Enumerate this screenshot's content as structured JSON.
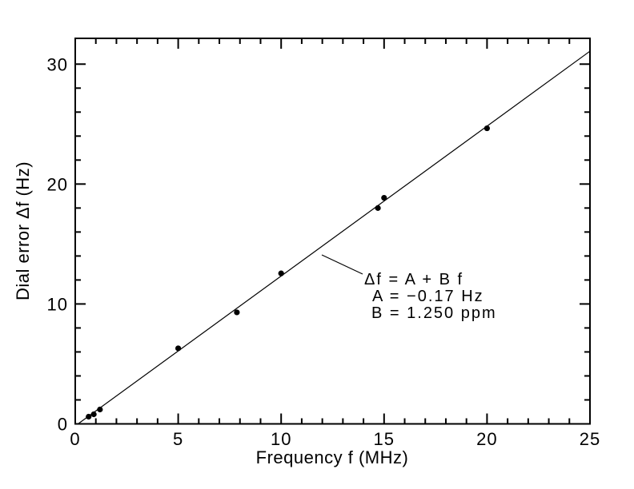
{
  "chart_data": {
    "type": "scatter",
    "title": "",
    "xlabel": "Frequency f (MHz)",
    "ylabel": "Dial error Δf (Hz)",
    "xlim": [
      0,
      25
    ],
    "ylim": [
      0,
      32.15
    ],
    "x_major_ticks": [
      0,
      5,
      10,
      15,
      20,
      25
    ],
    "x_minor_step": 1,
    "y_major_ticks": [
      0,
      10,
      20,
      30
    ],
    "y_minor_step": 2,
    "grid": false,
    "legend_position": "none",
    "series": [
      {
        "name": "measured-dial-error-points",
        "type": "scatter",
        "marker": "filled-circle",
        "points": [
          [
            0.65,
            0.6
          ],
          [
            0.9,
            0.8
          ],
          [
            1.2,
            1.2
          ],
          [
            5.0,
            6.3
          ],
          [
            7.85,
            9.3
          ],
          [
            10.0,
            12.55
          ],
          [
            14.7,
            18.0
          ],
          [
            15.0,
            18.85
          ],
          [
            20.0,
            24.65
          ]
        ]
      },
      {
        "name": "linear-fit-line",
        "type": "line",
        "model": "Δf = A + B f",
        "A_hz": -0.17,
        "B_ppm": 1.25
      }
    ],
    "annotation": {
      "lines": [
        "Δf = A + B f",
        "A = −0.17 Hz",
        "B = 1.250 ppm"
      ]
    },
    "colors": {
      "foreground": "#000000",
      "background": "#ffffff"
    }
  }
}
